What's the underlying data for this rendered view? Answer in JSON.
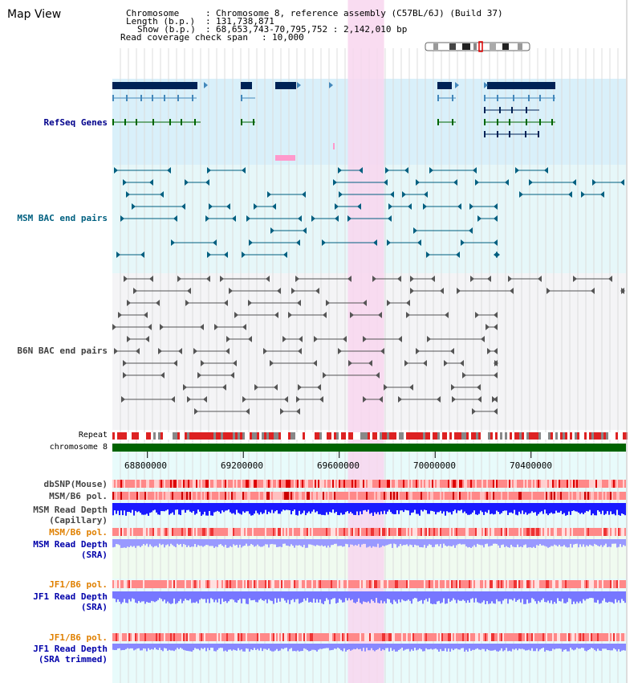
{
  "title": "Map View",
  "info": {
    "chromosome_label": "Chromosome",
    "chromosome_value": "Chromosome 8, reference assembly (C57BL/6J) (Build 37)",
    "length_label": "Length (b.p.)",
    "length_value": "131,738,871",
    "show_label": "Show (b.p.)",
    "show_value": "68,653,743-70,795,752 : 2,142,010 bp",
    "coverage_label": "Read coverage check span",
    "coverage_value": "10,000",
    "sep": ":"
  },
  "tracks": {
    "refseq": "RefSeq Genes",
    "msm_bac": "MSM BAC end pairs",
    "b6n_bac": "B6N BAC end pairs",
    "repeat": "Repeat",
    "chromosome": "chromosome 8",
    "dbsnp": "dbSNP(Mouse)",
    "msm_b6_pol_1": "MSM/B6 pol.",
    "msm_read_depth_cap_1": "MSM Read Depth",
    "msm_read_depth_cap_2": "(Capillary)",
    "msm_b6_pol_2": "MSM/B6 pol.",
    "msm_read_depth_sra_1": "MSM Read Depth",
    "msm_read_depth_sra_2": "(SRA)",
    "jf1_b6_pol_1": "JF1/B6 pol.",
    "jf1_read_depth_sra_1": "JF1 Read Depth",
    "jf1_read_depth_sra_2": "(SRA)",
    "jf1_b6_pol_2": "JF1/B6 pol.",
    "jf1_read_depth_trim_1": "JF1 Read Depth",
    "jf1_read_depth_trim_2": "(SRA trimmed)"
  },
  "axis": {
    "ticks": [
      "68800000",
      "69200000",
      "69600000",
      "70000000",
      "70400000"
    ],
    "tick_values": [
      68800000,
      69200000,
      69600000,
      70000000,
      70400000
    ],
    "start": 68653743,
    "end": 70795752
  },
  "highlight_range": [
    69636000,
    69787000
  ],
  "colors": {
    "refseq_label": "#00008b",
    "msm_label": "#006080",
    "b6n_label": "#404040",
    "orange_label": "#e08000",
    "blue_label": "#0000aa",
    "highlight": "#f8d6ef",
    "gene_dark": "#002255",
    "gene_blue": "#4488bb",
    "gene_green": "#006600",
    "chromosome_green": "#006400",
    "bac_teal": "#005f80",
    "bac_gray": "#555555"
  }
}
